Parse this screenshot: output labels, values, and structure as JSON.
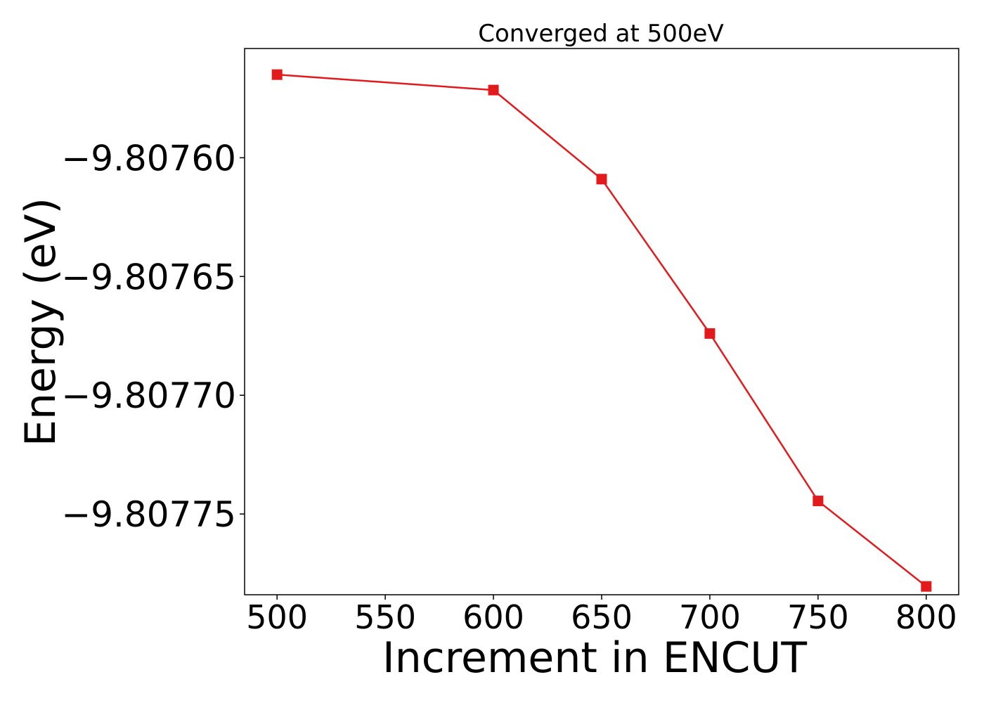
{
  "chart_data": {
    "type": "line",
    "title": "Converged at 500eV",
    "xlabel": "Increment in ENCUT",
    "ylabel": "Energy (eV)",
    "x": [
      500,
      600,
      650,
      700,
      750,
      800
    ],
    "series": [
      {
        "values": [
          -9.807565,
          -9.8075715,
          -9.807609,
          -9.807674,
          -9.8077445,
          -9.8077805
        ],
        "color": "#e31a1c",
        "marker": "square"
      }
    ],
    "xlim": [
      485,
      815
    ],
    "ylim": [
      -9.807784,
      -9.807554
    ],
    "xticks": [
      500,
      550,
      600,
      650,
      700,
      750,
      800
    ],
    "xtick_labels": [
      "500",
      "550",
      "600",
      "650",
      "700",
      "750",
      "800"
    ],
    "yticks": [
      -9.8076,
      -9.80765,
      -9.8077,
      -9.80775
    ],
    "ytick_labels": [
      "−9.80760",
      "−9.80765",
      "−9.80770",
      "−9.80775"
    ],
    "grid": false,
    "legend": "none"
  }
}
